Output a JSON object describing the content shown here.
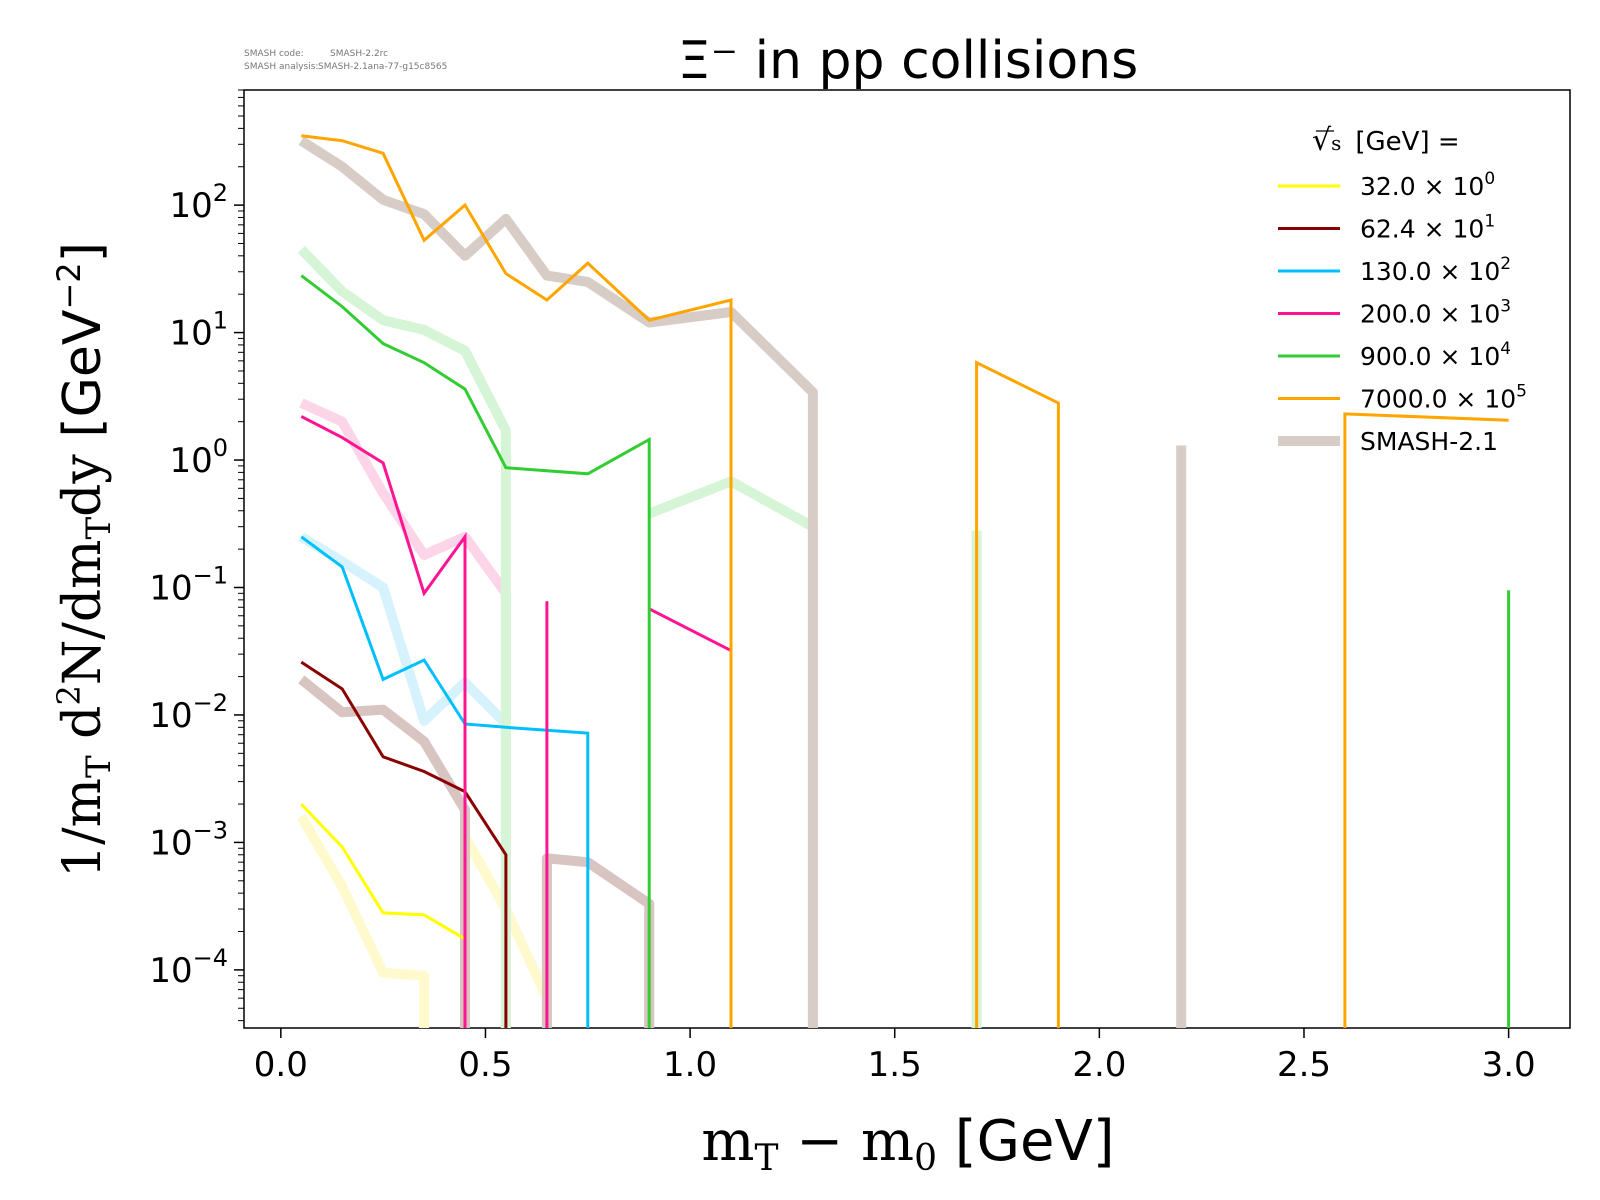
{
  "header": {
    "code_label": "SMASH code:",
    "code_value": "SMASH-2.2rc",
    "analysis_label": "SMASH analysis:",
    "analysis_value": "SMASH-2.1ana-77-g15c8565"
  },
  "chart_data": {
    "type": "line",
    "title": "Ξ⁻ in pp collisions",
    "xlabel": "m_T − m_0 [GeV]",
    "ylabel": "1/m_T d²N/dm_Tdy [GeV⁻²]",
    "xlim": [
      -0.09,
      3.15
    ],
    "ylim": [
      3.5e-05,
      800
    ],
    "yscale": "log",
    "x_ticks": [
      0.0,
      0.5,
      1.0,
      1.5,
      2.0,
      2.5,
      3.0
    ],
    "x_tick_labels": [
      "0.0",
      "0.5",
      "1.0",
      "1.5",
      "2.0",
      "2.5",
      "3.0"
    ],
    "y_tick_labels": [
      {
        "value": 100,
        "base": "10",
        "exp": "2"
      },
      {
        "value": 10,
        "base": "10",
        "exp": "1"
      },
      {
        "value": 1,
        "base": "10",
        "exp": "0"
      },
      {
        "value": 0.1,
        "base": "10",
        "exp": "−1"
      },
      {
        "value": 0.01,
        "base": "10",
        "exp": "−2"
      },
      {
        "value": 0.001,
        "base": "10",
        "exp": "−3"
      },
      {
        "value": 0.0001,
        "base": "10",
        "exp": "−4"
      }
    ],
    "legend": {
      "title": "√s [GeV] =",
      "title_radical": "√",
      "title_s": "s",
      "title_rest": "[GeV] =",
      "placement": "top-right",
      "entries": [
        {
          "mantissa": "32.0",
          "exp": "0",
          "color": "#ffff00"
        },
        {
          "mantissa": "62.4",
          "exp": "1",
          "color": "#8b0000"
        },
        {
          "mantissa": "130.0",
          "exp": "2",
          "color": "#00bfff"
        },
        {
          "mantissa": "200.0",
          "exp": "3",
          "color": "#ff1493"
        },
        {
          "mantissa": "900.0",
          "exp": "4",
          "color": "#32cd32"
        },
        {
          "mantissa": "7000.0",
          "exp": "5",
          "color": "#ffa500"
        }
      ],
      "smash_label": "SMASH-2.1",
      "smash_color": "#d8ccc6"
    },
    "series": [
      {
        "name": "32.0",
        "color": "#ffff00",
        "x": [
          0.05,
          0.15,
          0.25,
          0.35,
          0.45
        ],
        "y": [
          0.002,
          0.00092,
          0.00028,
          0.00027,
          0.000175
        ]
      },
      {
        "name": "62.4",
        "color": "#8b0000",
        "x": [
          0.05,
          0.15,
          0.25,
          0.35,
          0.45,
          0.55,
          0.55
        ],
        "y": [
          0.026,
          0.016,
          0.0047,
          0.0036,
          0.0025,
          0.0008,
          3.5e-05
        ]
      },
      {
        "name": "130.0",
        "color": "#00bfff",
        "x": [
          0.05,
          0.15,
          0.25,
          0.35,
          0.45,
          0.55,
          0.75,
          0.75
        ],
        "y": [
          0.25,
          0.145,
          0.019,
          0.027,
          0.0085,
          0.008,
          0.0072,
          3.5e-05
        ]
      },
      {
        "name": "200.0",
        "color": "#ff1493",
        "x": [
          0.05,
          0.15,
          0.25,
          0.35,
          0.45,
          0.45
        ],
        "y": [
          2.2,
          1.5,
          0.95,
          0.09,
          0.25,
          3.5e-05
        ]
      },
      {
        "name": "200.0",
        "color": "#ff1493",
        "x": [
          0.65,
          0.65
        ],
        "y": [
          0.078,
          3.5e-05
        ]
      },
      {
        "name": "200.0",
        "color": "#ff1493",
        "x": [
          0.9,
          1.1
        ],
        "y": [
          0.068,
          0.032
        ]
      },
      {
        "name": "900.0",
        "color": "#32cd32",
        "x": [
          0.05,
          0.15,
          0.25,
          0.35,
          0.45,
          0.55,
          0.75,
          0.9,
          0.9
        ],
        "y": [
          28,
          16,
          8.2,
          5.8,
          3.6,
          0.87,
          0.78,
          1.45,
          3.5e-05
        ]
      },
      {
        "name": "900.0",
        "color": "#32cd32",
        "x": [
          3.0,
          3.0
        ],
        "y": [
          3.5e-05,
          0.095
        ]
      },
      {
        "name": "7000.0",
        "color": "#ffa500",
        "x": [
          0.05,
          0.15,
          0.25,
          0.35,
          0.45,
          0.55,
          0.65,
          0.75,
          0.9,
          1.1,
          1.1
        ],
        "y": [
          350,
          320,
          255,
          53,
          100,
          29,
          18,
          35,
          12.5,
          18,
          3.5e-05
        ]
      },
      {
        "name": "7000.0",
        "color": "#ffa500",
        "x": [
          1.7,
          1.7,
          1.9,
          1.9
        ],
        "y": [
          3.5e-05,
          5.8,
          2.8,
          3.5e-05
        ]
      },
      {
        "name": "7000.0",
        "color": "#ffa500",
        "x": [
          2.6,
          2.6,
          3.0
        ],
        "y": [
          3.5e-05,
          2.3,
          2.05
        ]
      }
    ],
    "smash_series": [
      {
        "name": "SMASH-2.1",
        "color": "#fffacd",
        "x": [
          0.05,
          0.15,
          0.25,
          0.35,
          0.35
        ],
        "y": [
          0.0016,
          0.00045,
          9.5e-05,
          9e-05,
          3.5e-05
        ]
      },
      {
        "name": "SMASH-2.1",
        "color": "#fffacd",
        "x": [
          0.45,
          0.55,
          0.65
        ],
        "y": [
          0.0011,
          0.0003,
          6e-05
        ]
      },
      {
        "name": "SMASH-2.1",
        "color": "#d8c4c0",
        "x": [
          0.05,
          0.15,
          0.25,
          0.35,
          0.45,
          0.45
        ],
        "y": [
          0.019,
          0.0105,
          0.011,
          0.0062,
          0.0018,
          3.5e-05
        ]
      },
      {
        "name": "SMASH-2.1",
        "color": "#d8c4c0",
        "x": [
          0.65,
          0.65,
          0.75,
          0.9,
          0.9
        ],
        "y": [
          3.5e-05,
          0.00075,
          0.0007,
          0.00033,
          3.5e-05
        ]
      },
      {
        "name": "SMASH-2.1",
        "color": "#d6f2fc",
        "x": [
          0.05,
          0.15,
          0.25,
          0.35,
          0.45,
          0.55
        ],
        "y": [
          0.25,
          0.16,
          0.1,
          0.009,
          0.018,
          0.0085
        ]
      },
      {
        "name": "SMASH-2.1",
        "color": "#fdd5e8",
        "x": [
          0.05,
          0.15,
          0.25,
          0.35,
          0.45,
          0.55,
          0.55
        ],
        "y": [
          2.8,
          2.0,
          0.55,
          0.18,
          0.25,
          0.09,
          3.5e-05
        ]
      },
      {
        "name": "SMASH-2.1",
        "color": "#d6f4d6",
        "x": [
          0.05,
          0.15,
          0.25,
          0.35,
          0.45,
          0.55,
          0.55
        ],
        "y": [
          45,
          21,
          12.5,
          10.5,
          7.2,
          1.7,
          3.5e-05
        ]
      },
      {
        "name": "SMASH-2.1",
        "color": "#d6f4d6",
        "x": [
          0.9,
          1.1,
          1.3,
          1.3
        ],
        "y": [
          0.38,
          0.68,
          0.3,
          3.5e-05
        ]
      },
      {
        "name": "SMASH-2.1",
        "color": "#d6f4d6",
        "x": [
          1.7,
          1.7
        ],
        "y": [
          0.28,
          3.5e-05
        ]
      },
      {
        "name": "SMASH-2.1",
        "color": "#d8ccc6",
        "x": [
          0.05,
          0.15,
          0.25,
          0.35,
          0.45,
          0.55,
          0.65,
          0.75,
          0.9,
          1.1,
          1.3,
          1.3
        ],
        "y": [
          320,
          200,
          110,
          85,
          40,
          78,
          28,
          25,
          12,
          14.5,
          3.4,
          3.5e-05
        ]
      },
      {
        "name": "SMASH-2.1",
        "color": "#d8ccc6",
        "x": [
          2.2,
          2.2
        ],
        "y": [
          1.3,
          3.5e-05
        ]
      }
    ]
  }
}
